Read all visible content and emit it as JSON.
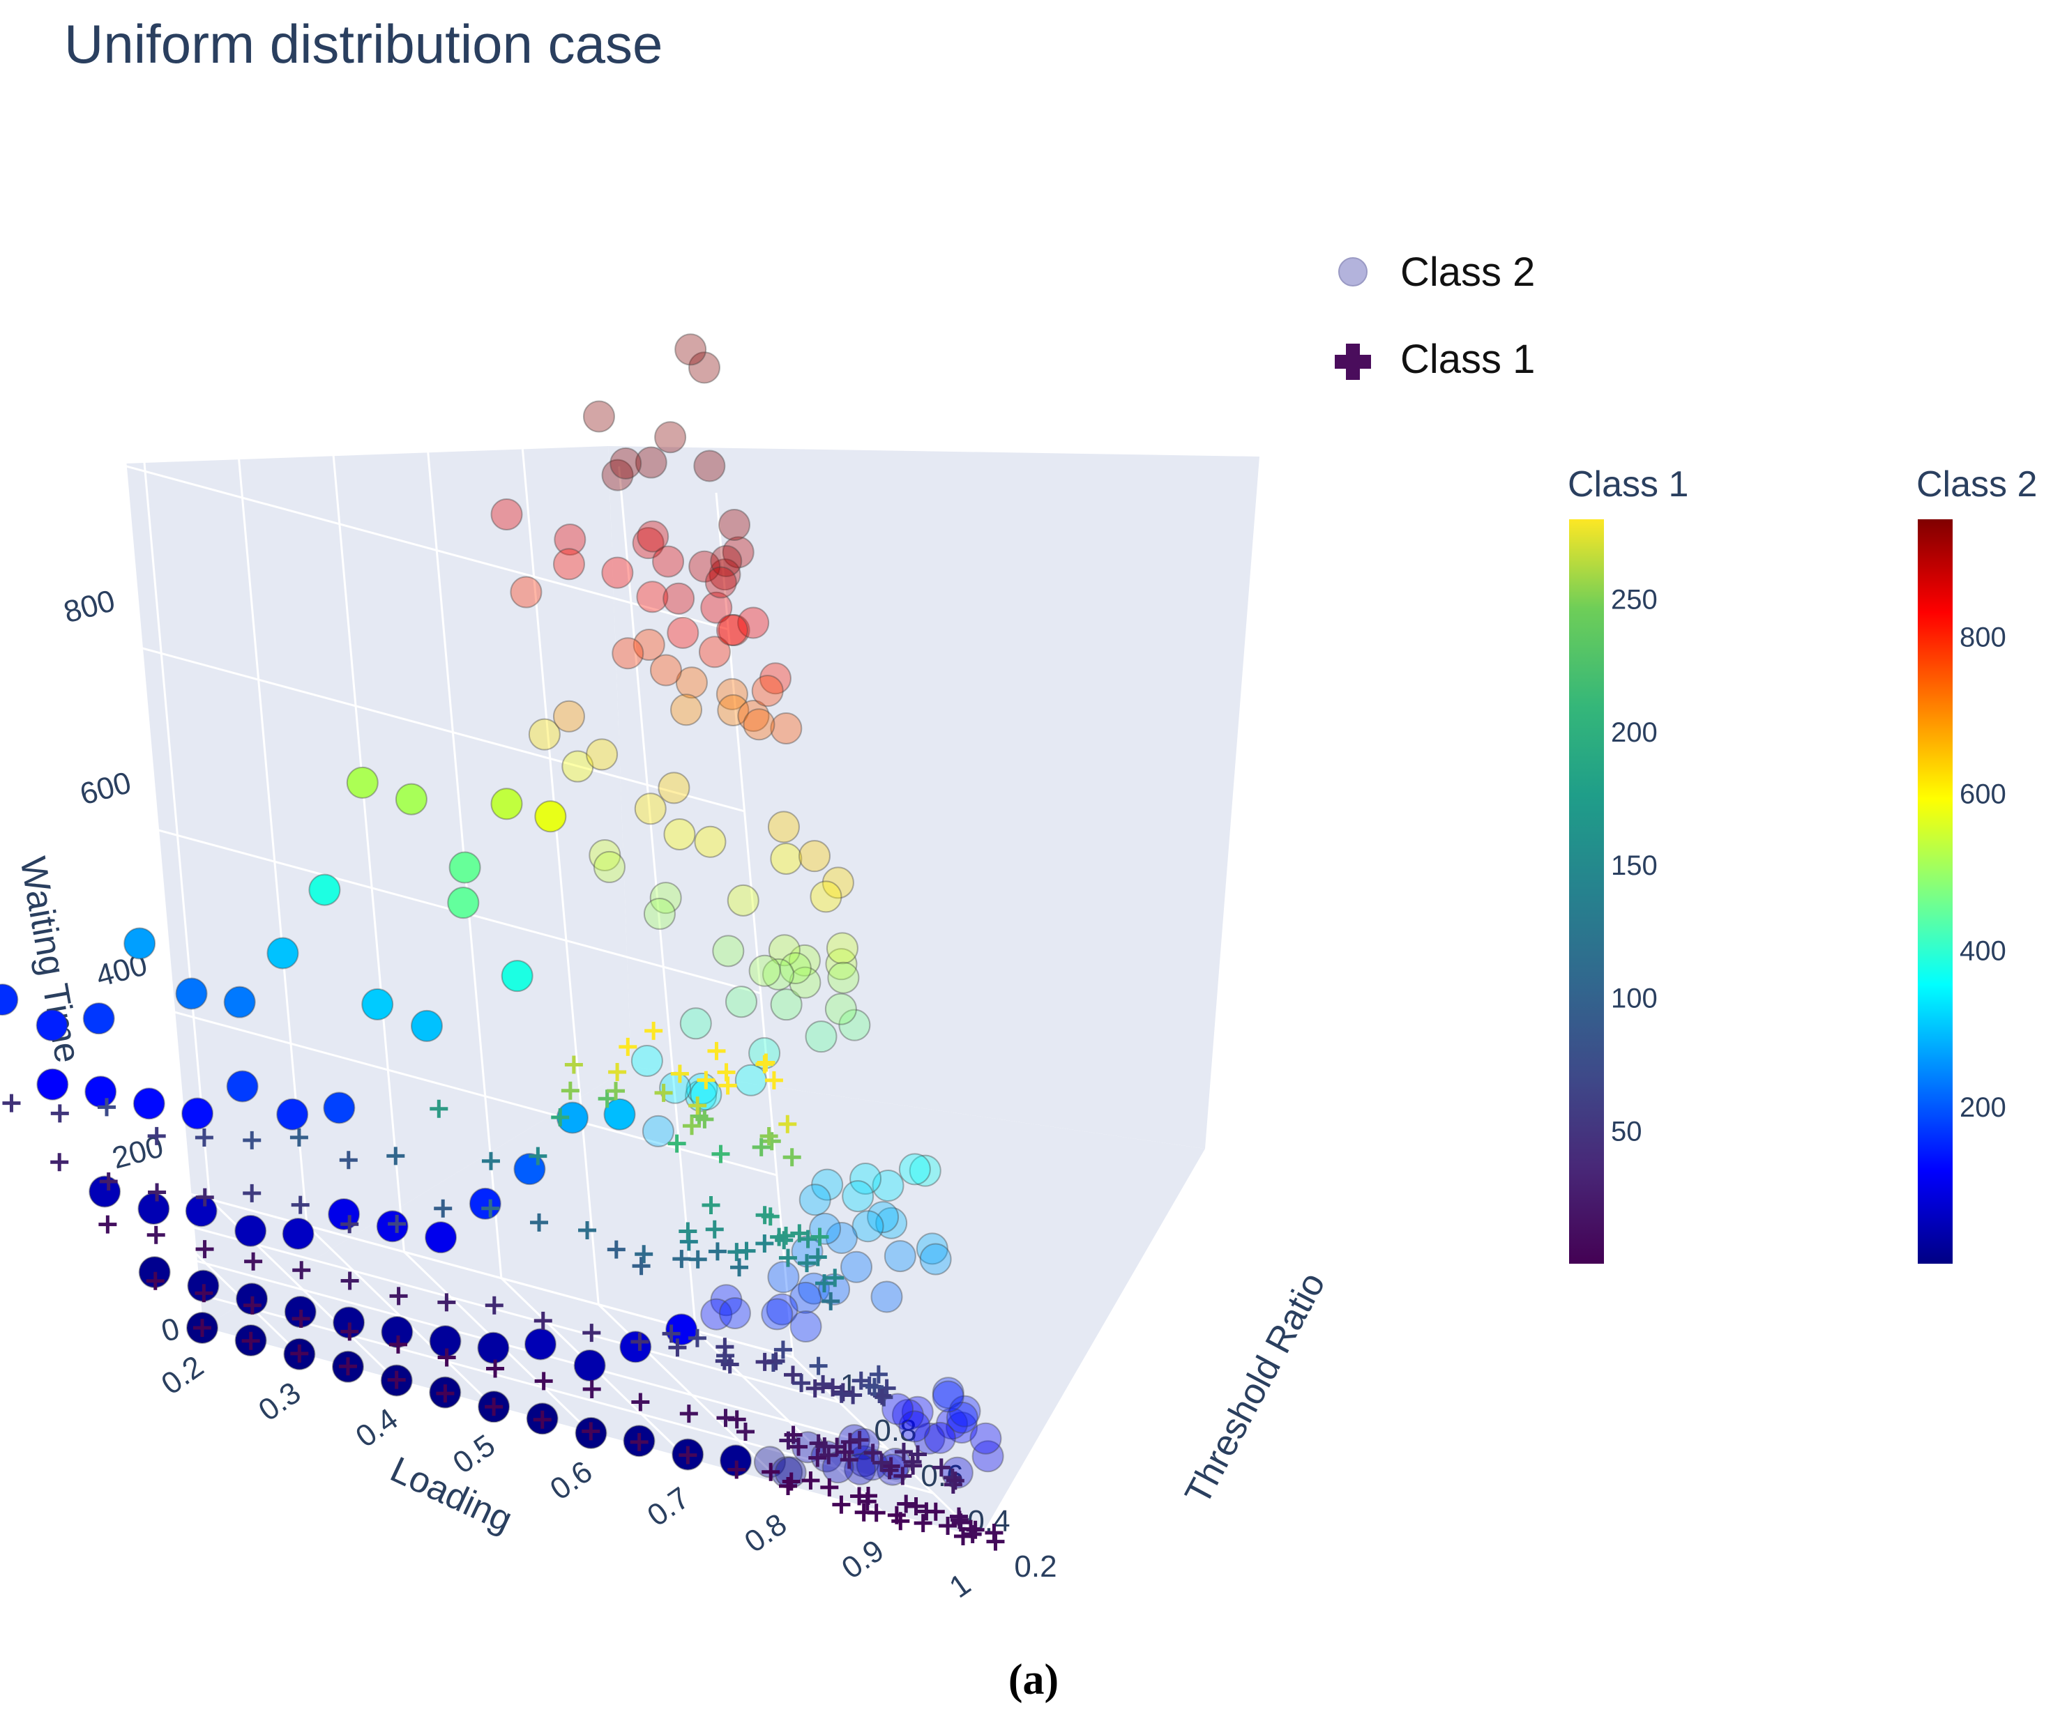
{
  "chart_data": {
    "type": "scatter",
    "title": "Uniform distribution case",
    "caption": "(a)",
    "xlabel": "Loading",
    "ylabel": "Threshold Ratio",
    "zlabel": "Waiting Time",
    "x_ticks": [
      "0.2",
      "0.3",
      "0.4",
      "0.5",
      "0.6",
      "0.7",
      "0.8",
      "0.9",
      "1"
    ],
    "y_ticks": [
      "0.2",
      "0.4",
      "0.6",
      "0.8",
      "1"
    ],
    "z_ticks": [
      "0",
      "200",
      "400",
      "600",
      "800"
    ],
    "xlim": [
      0.2,
      1.0
    ],
    "ylim": [
      0.2,
      1.0
    ],
    "zlim": [
      0,
      950
    ],
    "legend": {
      "position": "top-right",
      "entries": [
        {
          "name": "Class 2",
          "symbol": "circle",
          "color": "#b3b3dc"
        },
        {
          "name": "Class 1",
          "symbol": "cross",
          "color": "#4a0d5c"
        }
      ]
    },
    "colorbars": [
      {
        "title": "Class 1",
        "colorscale": "Viridis",
        "range": [
          0,
          280
        ],
        "ticks": [
          "50",
          "100",
          "150",
          "200",
          "250"
        ]
      },
      {
        "title": "Class 2",
        "colorscale": "Jet",
        "range": [
          0,
          950
        ],
        "ticks": [
          "200",
          "400",
          "600",
          "800"
        ]
      }
    ],
    "series": [
      {
        "name": "Class 2",
        "marker": "circle",
        "colorscale": "Jet",
        "description_points": [
          {
            "x": 0.2,
            "y": 0.2,
            "z": 0
          },
          {
            "x": 0.3,
            "y": 0.2,
            "z": 0
          },
          {
            "x": 0.4,
            "y": 0.2,
            "z": 0
          },
          {
            "x": 0.5,
            "y": 0.2,
            "z": 0
          },
          {
            "x": 0.6,
            "y": 0.2,
            "z": 0
          },
          {
            "x": 0.7,
            "y": 0.2,
            "z": 5
          },
          {
            "x": 0.8,
            "y": 0.2,
            "z": 15
          },
          {
            "x": 0.9,
            "y": 0.2,
            "z": 60
          },
          {
            "x": 1.0,
            "y": 0.2,
            "z": 130
          },
          {
            "x": 1.0,
            "y": 0.4,
            "z": 300
          },
          {
            "x": 1.0,
            "y": 0.6,
            "z": 520
          },
          {
            "x": 1.0,
            "y": 0.8,
            "z": 760
          },
          {
            "x": 1.0,
            "y": 1.0,
            "z": 900
          }
        ]
      },
      {
        "name": "Class 1",
        "marker": "cross",
        "colorscale": "Viridis",
        "description_points": [
          {
            "x": 0.2,
            "y": 0.2,
            "z": 0
          },
          {
            "x": 0.5,
            "y": 0.2,
            "z": 0
          },
          {
            "x": 0.8,
            "y": 0.2,
            "z": 2
          },
          {
            "x": 0.9,
            "y": 0.2,
            "z": 5
          },
          {
            "x": 1.0,
            "y": 0.2,
            "z": 10
          },
          {
            "x": 1.0,
            "y": 0.6,
            "z": 60
          },
          {
            "x": 1.0,
            "y": 1.0,
            "z": 270
          }
        ]
      }
    ]
  }
}
